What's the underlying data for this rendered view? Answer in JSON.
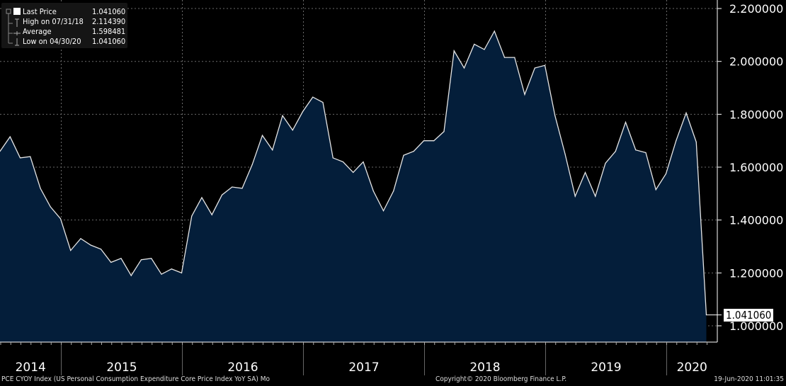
{
  "legend": {
    "items": [
      {
        "label": "Last Price",
        "value": "1.041060",
        "icon": "white-square-icon"
      },
      {
        "label": "High on 07/31/18",
        "value": "2.114390",
        "icon": "high-marker-icon"
      },
      {
        "label": "Average",
        "value": "1.598481",
        "icon": "average-marker-icon"
      },
      {
        "label": "Low on 04/30/20",
        "value": "1.041060",
        "icon": "low-marker-icon"
      }
    ]
  },
  "last_price_label": "1.041060",
  "footer": {
    "description": "PCE CYOY Index (US Personal Consumption Expenditure Core Price Index YoY SA)  Mo",
    "copyright": "Copyright© 2020 Bloomberg Finance L.P.",
    "timestamp": "19-Jun-2020 11:01:35"
  },
  "colors": {
    "fill": "#041e3a",
    "line": "#e6e6e6",
    "grid": "#6a6a6a"
  },
  "chart_data": {
    "type": "area",
    "title": "PCE CYOY Index",
    "xlabel": "",
    "ylabel": "",
    "x_start": "2014-06",
    "x_end": "2020-04",
    "frequency": "monthly",
    "ylim": [
      0.93,
      2.25
    ],
    "y_ticks": [
      "2.200000",
      "2.000000",
      "1.800000",
      "1.600000",
      "1.400000",
      "1.200000",
      "1.000000"
    ],
    "y_tick_values": [
      2.2,
      2.0,
      1.8,
      1.6,
      1.4,
      1.2,
      1.0
    ],
    "x_ticks": [
      "2014",
      "2015",
      "2016",
      "2017",
      "2018",
      "2019",
      "2020"
    ],
    "grid": true,
    "legend_position": "top-left",
    "values": [
      1.66,
      1.715,
      1.635,
      1.64,
      1.52,
      1.45,
      1.405,
      1.285,
      1.33,
      1.305,
      1.29,
      1.24,
      1.255,
      1.19,
      1.25,
      1.255,
      1.195,
      1.215,
      1.2,
      1.415,
      1.485,
      1.42,
      1.495,
      1.525,
      1.52,
      1.61,
      1.72,
      1.665,
      1.795,
      1.74,
      1.81,
      1.865,
      1.845,
      1.635,
      1.62,
      1.58,
      1.62,
      1.51,
      1.435,
      1.51,
      1.645,
      1.66,
      1.7,
      1.7,
      1.735,
      2.04,
      1.975,
      2.065,
      2.045,
      2.11439,
      2.015,
      2.015,
      1.875,
      1.975,
      1.985,
      1.795,
      1.65,
      1.49,
      1.58,
      1.49,
      1.615,
      1.66,
      1.77,
      1.665,
      1.655,
      1.515,
      1.575,
      1.7,
      1.805,
      1.695,
      1.04106
    ]
  }
}
